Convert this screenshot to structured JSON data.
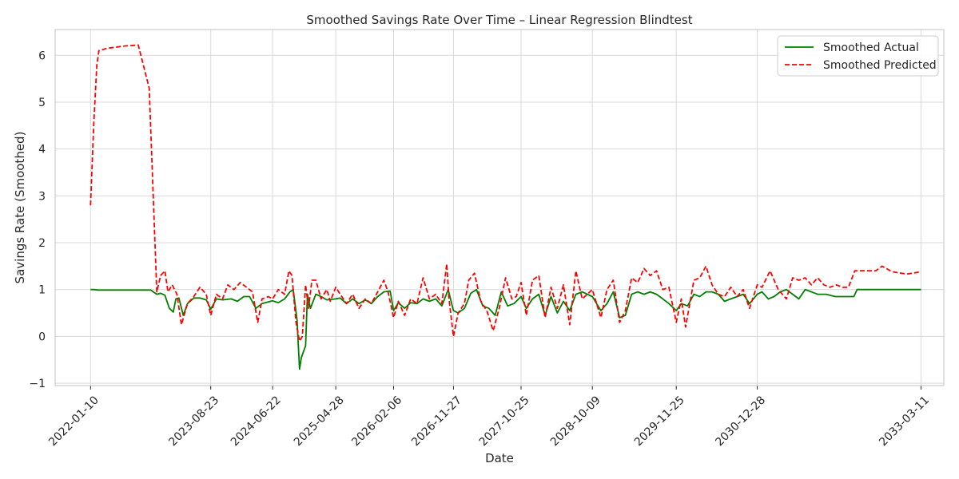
{
  "chart_data": {
    "type": "line",
    "title": "Smoothed Savings Rate Over Time – Linear Regression Blindtest",
    "xlabel": "Date",
    "ylabel": "Savings Rate (Smoothed)",
    "x_ticks": [
      "2022-01-10",
      "2023-08-23",
      "2024-06-22",
      "2025-04-28",
      "2026-02-06",
      "2026-11-27",
      "2027-10-25",
      "2028-10-09",
      "2029-11-25",
      "2030-12-28",
      "2033-03-11"
    ],
    "y_ticks": [
      -1,
      0,
      1,
      2,
      3,
      4,
      5,
      6
    ],
    "ylim": [
      -1.05,
      6.55
    ],
    "xlim": [
      "2021-07-20",
      "2033-07-01"
    ],
    "grid": true,
    "legend_position": "top-right",
    "legend": [
      {
        "label": "Smoothed Actual",
        "color": "#008000",
        "style": "solid"
      },
      {
        "label": "Smoothed Predicted",
        "color": "#ff0000",
        "style": "dashed"
      }
    ],
    "series": [
      {
        "name": "Smoothed Actual",
        "color": "#008000",
        "style": "solid",
        "points": [
          [
            "2022-01-10",
            1.0
          ],
          [
            "2022-01-25",
            1.0
          ],
          [
            "2022-02-15",
            0.99
          ],
          [
            "2022-06-01",
            0.99
          ],
          [
            "2022-10-01",
            0.99
          ],
          [
            "2022-11-01",
            0.99
          ],
          [
            "2022-12-01",
            0.9
          ],
          [
            "2022-12-20",
            0.92
          ],
          [
            "2023-01-10",
            0.88
          ],
          [
            "2023-02-01",
            0.6
          ],
          [
            "2023-02-20",
            0.52
          ],
          [
            "2023-03-05",
            0.8
          ],
          [
            "2023-03-20",
            0.82
          ],
          [
            "2023-04-10",
            0.45
          ],
          [
            "2023-05-01",
            0.7
          ],
          [
            "2023-06-01",
            0.82
          ],
          [
            "2023-07-01",
            0.82
          ],
          [
            "2023-08-01",
            0.78
          ],
          [
            "2023-08-23",
            0.58
          ],
          [
            "2023-09-20",
            0.8
          ],
          [
            "2023-10-20",
            0.78
          ],
          [
            "2023-12-01",
            0.8
          ],
          [
            "2024-01-01",
            0.75
          ],
          [
            "2024-02-01",
            0.85
          ],
          [
            "2024-03-01",
            0.85
          ],
          [
            "2024-04-01",
            0.6
          ],
          [
            "2024-05-01",
            0.7
          ],
          [
            "2024-06-22",
            0.76
          ],
          [
            "2024-07-20",
            0.72
          ],
          [
            "2024-08-20",
            0.8
          ],
          [
            "2024-09-15",
            0.95
          ],
          [
            "2024-10-01",
            1.0
          ],
          [
            "2024-10-20",
            0.35
          ],
          [
            "2024-11-01",
            -0.7
          ],
          [
            "2024-11-10",
            -0.45
          ],
          [
            "2024-12-01",
            -0.2
          ],
          [
            "2024-12-10",
            0.9
          ],
          [
            "2024-12-25",
            0.6
          ],
          [
            "2025-01-20",
            0.9
          ],
          [
            "2025-02-15",
            0.85
          ],
          [
            "2025-03-15",
            0.78
          ],
          [
            "2025-04-28",
            0.8
          ],
          [
            "2025-05-20",
            0.82
          ],
          [
            "2025-06-20",
            0.7
          ],
          [
            "2025-07-20",
            0.8
          ],
          [
            "2025-08-20",
            0.7
          ],
          [
            "2025-09-20",
            0.78
          ],
          [
            "2025-10-20",
            0.7
          ],
          [
            "2025-11-20",
            0.85
          ],
          [
            "2025-12-20",
            0.95
          ],
          [
            "2026-01-20",
            0.97
          ],
          [
            "2026-02-06",
            0.55
          ],
          [
            "2026-03-01",
            0.72
          ],
          [
            "2026-04-01",
            0.6
          ],
          [
            "2026-05-01",
            0.72
          ],
          [
            "2026-06-01",
            0.7
          ],
          [
            "2026-07-01",
            0.8
          ],
          [
            "2026-08-01",
            0.75
          ],
          [
            "2026-09-01",
            0.8
          ],
          [
            "2026-10-01",
            0.65
          ],
          [
            "2026-11-01",
            1.0
          ],
          [
            "2026-11-27",
            0.55
          ],
          [
            "2026-12-20",
            0.5
          ],
          [
            "2027-01-20",
            0.6
          ],
          [
            "2027-02-20",
            0.92
          ],
          [
            "2027-03-20",
            1.0
          ],
          [
            "2027-04-20",
            0.65
          ],
          [
            "2027-05-20",
            0.6
          ],
          [
            "2027-06-20",
            0.45
          ],
          [
            "2027-07-20",
            0.95
          ],
          [
            "2027-08-20",
            0.65
          ],
          [
            "2027-09-20",
            0.7
          ],
          [
            "2027-10-25",
            0.85
          ],
          [
            "2027-11-20",
            0.6
          ],
          [
            "2027-12-20",
            0.8
          ],
          [
            "2028-01-20",
            0.9
          ],
          [
            "2028-02-20",
            0.45
          ],
          [
            "2028-03-20",
            0.85
          ],
          [
            "2028-04-20",
            0.5
          ],
          [
            "2028-05-20",
            0.75
          ],
          [
            "2028-06-20",
            0.55
          ],
          [
            "2028-07-20",
            0.9
          ],
          [
            "2028-08-20",
            0.95
          ],
          [
            "2028-10-09",
            0.85
          ],
          [
            "2028-11-20",
            0.55
          ],
          [
            "2028-12-20",
            0.7
          ],
          [
            "2029-01-20",
            0.95
          ],
          [
            "2029-02-20",
            0.4
          ],
          [
            "2029-03-20",
            0.45
          ],
          [
            "2029-04-20",
            0.9
          ],
          [
            "2029-05-20",
            0.95
          ],
          [
            "2029-06-20",
            0.9
          ],
          [
            "2029-07-20",
            0.95
          ],
          [
            "2029-08-20",
            0.9
          ],
          [
            "2029-09-20",
            0.8
          ],
          [
            "2029-10-20",
            0.7
          ],
          [
            "2029-11-25",
            0.55
          ],
          [
            "2029-12-20",
            0.7
          ],
          [
            "2030-01-20",
            0.65
          ],
          [
            "2030-02-20",
            0.9
          ],
          [
            "2030-03-20",
            0.85
          ],
          [
            "2030-04-20",
            0.95
          ],
          [
            "2030-05-20",
            0.95
          ],
          [
            "2030-06-20",
            0.9
          ],
          [
            "2030-07-20",
            0.75
          ],
          [
            "2030-08-20",
            0.8
          ],
          [
            "2030-09-20",
            0.85
          ],
          [
            "2030-10-20",
            0.9
          ],
          [
            "2030-11-20",
            0.7
          ],
          [
            "2030-12-28",
            0.9
          ],
          [
            "2031-01-20",
            0.95
          ],
          [
            "2031-02-20",
            0.8
          ],
          [
            "2031-03-20",
            0.85
          ],
          [
            "2031-04-20",
            0.95
          ],
          [
            "2031-05-20",
            1.0
          ],
          [
            "2031-06-20",
            0.9
          ],
          [
            "2031-07-20",
            0.8
          ],
          [
            "2031-08-20",
            1.0
          ],
          [
            "2031-09-20",
            0.95
          ],
          [
            "2031-10-20",
            0.9
          ],
          [
            "2031-12-01",
            0.9
          ],
          [
            "2032-01-15",
            0.85
          ],
          [
            "2032-03-01",
            0.85
          ],
          [
            "2032-04-15",
            0.85
          ],
          [
            "2032-05-01",
            1.0
          ],
          [
            "2032-08-01",
            1.0
          ],
          [
            "2033-03-11",
            1.0
          ]
        ]
      },
      {
        "name": "Smoothed Predicted",
        "color": "#ff0000",
        "style": "dashed",
        "points": [
          [
            "2022-01-10",
            2.8
          ],
          [
            "2022-01-25",
            4.5
          ],
          [
            "2022-02-10",
            5.8
          ],
          [
            "2022-02-20",
            6.1
          ],
          [
            "2022-04-01",
            6.15
          ],
          [
            "2022-07-01",
            6.2
          ],
          [
            "2022-09-01",
            6.22
          ],
          [
            "2022-10-25",
            5.3
          ],
          [
            "2022-12-01",
            0.95
          ],
          [
            "2022-12-20",
            1.3
          ],
          [
            "2023-01-10",
            1.4
          ],
          [
            "2023-01-25",
            0.95
          ],
          [
            "2023-02-15",
            1.1
          ],
          [
            "2023-03-10",
            0.9
          ],
          [
            "2023-04-01",
            0.25
          ],
          [
            "2023-05-01",
            0.7
          ],
          [
            "2023-06-01",
            0.85
          ],
          [
            "2023-07-01",
            1.05
          ],
          [
            "2023-08-01",
            0.9
          ],
          [
            "2023-08-23",
            0.45
          ],
          [
            "2023-09-20",
            0.9
          ],
          [
            "2023-10-20",
            0.8
          ],
          [
            "2023-11-15",
            1.1
          ],
          [
            "2023-12-15",
            1.0
          ],
          [
            "2024-01-15",
            1.15
          ],
          [
            "2024-02-15",
            1.05
          ],
          [
            "2024-03-15",
            0.95
          ],
          [
            "2024-04-10",
            0.3
          ],
          [
            "2024-05-01",
            0.8
          ],
          [
            "2024-06-01",
            0.85
          ],
          [
            "2024-06-22",
            0.8
          ],
          [
            "2024-07-20",
            1.0
          ],
          [
            "2024-08-20",
            0.9
          ],
          [
            "2024-09-10",
            1.4
          ],
          [
            "2024-09-25",
            1.3
          ],
          [
            "2024-10-15",
            0.3
          ],
          [
            "2024-11-01",
            -0.1
          ],
          [
            "2024-11-15",
            0.0
          ],
          [
            "2024-12-01",
            1.1
          ],
          [
            "2024-12-15",
            0.6
          ],
          [
            "2025-01-01",
            1.2
          ],
          [
            "2025-01-20",
            1.2
          ],
          [
            "2025-02-15",
            0.8
          ],
          [
            "2025-03-15",
            1.0
          ],
          [
            "2025-04-01",
            0.75
          ],
          [
            "2025-04-28",
            1.05
          ],
          [
            "2025-05-20",
            0.9
          ],
          [
            "2025-06-20",
            0.7
          ],
          [
            "2025-07-20",
            0.9
          ],
          [
            "2025-08-20",
            0.6
          ],
          [
            "2025-09-20",
            0.8
          ],
          [
            "2025-10-20",
            0.7
          ],
          [
            "2025-11-20",
            0.95
          ],
          [
            "2025-12-20",
            1.2
          ],
          [
            "2026-01-10",
            0.95
          ],
          [
            "2026-02-06",
            0.4
          ],
          [
            "2026-03-01",
            0.75
          ],
          [
            "2026-04-01",
            0.45
          ],
          [
            "2026-05-01",
            0.8
          ],
          [
            "2026-06-01",
            0.7
          ],
          [
            "2026-07-01",
            1.25
          ],
          [
            "2026-08-01",
            0.8
          ],
          [
            "2026-09-01",
            0.9
          ],
          [
            "2026-10-01",
            0.7
          ],
          [
            "2026-10-25",
            1.55
          ],
          [
            "2026-11-05",
            0.8
          ],
          [
            "2026-11-27",
            0.0
          ],
          [
            "2026-12-20",
            0.5
          ],
          [
            "2027-01-20",
            0.7
          ],
          [
            "2027-02-10",
            1.2
          ],
          [
            "2027-03-10",
            1.35
          ],
          [
            "2027-04-10",
            0.75
          ],
          [
            "2027-05-10",
            0.55
          ],
          [
            "2027-06-10",
            0.12
          ],
          [
            "2027-07-10",
            0.6
          ],
          [
            "2027-08-10",
            1.25
          ],
          [
            "2027-09-10",
            0.8
          ],
          [
            "2027-10-01",
            0.85
          ],
          [
            "2027-10-25",
            1.15
          ],
          [
            "2027-11-20",
            0.45
          ],
          [
            "2027-12-20",
            1.2
          ],
          [
            "2028-01-20",
            1.3
          ],
          [
            "2028-02-20",
            0.4
          ],
          [
            "2028-03-20",
            1.05
          ],
          [
            "2028-04-20",
            0.6
          ],
          [
            "2028-05-20",
            1.1
          ],
          [
            "2028-06-20",
            0.25
          ],
          [
            "2028-07-20",
            1.4
          ],
          [
            "2028-08-20",
            0.8
          ],
          [
            "2028-10-09",
            1.0
          ],
          [
            "2028-11-20",
            0.4
          ],
          [
            "2028-12-20",
            1.0
          ],
          [
            "2029-01-20",
            1.2
          ],
          [
            "2029-02-20",
            0.3
          ],
          [
            "2029-03-20",
            0.55
          ],
          [
            "2029-04-20",
            1.25
          ],
          [
            "2029-05-20",
            1.15
          ],
          [
            "2029-06-20",
            1.45
          ],
          [
            "2029-07-20",
            1.3
          ],
          [
            "2029-08-20",
            1.4
          ],
          [
            "2029-09-20",
            1.0
          ],
          [
            "2029-10-20",
            1.05
          ],
          [
            "2029-11-25",
            0.3
          ],
          [
            "2029-12-20",
            0.8
          ],
          [
            "2030-01-10",
            0.2
          ],
          [
            "2030-02-20",
            1.2
          ],
          [
            "2030-03-20",
            1.25
          ],
          [
            "2030-04-20",
            1.5
          ],
          [
            "2030-05-20",
            1.1
          ],
          [
            "2030-06-20",
            0.9
          ],
          [
            "2030-07-20",
            0.85
          ],
          [
            "2030-08-20",
            1.05
          ],
          [
            "2030-09-20",
            0.85
          ],
          [
            "2030-10-20",
            1.0
          ],
          [
            "2030-11-20",
            0.6
          ],
          [
            "2030-12-28",
            1.1
          ],
          [
            "2031-01-20",
            1.05
          ],
          [
            "2031-03-01",
            1.4
          ],
          [
            "2031-04-10",
            1.0
          ],
          [
            "2031-05-20",
            0.8
          ],
          [
            "2031-06-20",
            1.25
          ],
          [
            "2031-07-20",
            1.2
          ],
          [
            "2031-08-20",
            1.25
          ],
          [
            "2031-09-20",
            1.1
          ],
          [
            "2031-10-20",
            1.25
          ],
          [
            "2031-11-20",
            1.1
          ],
          [
            "2031-12-20",
            1.05
          ],
          [
            "2032-01-20",
            1.1
          ],
          [
            "2032-02-20",
            1.05
          ],
          [
            "2032-03-20",
            1.05
          ],
          [
            "2032-04-20",
            1.4
          ],
          [
            "2032-06-20",
            1.4
          ],
          [
            "2032-08-01",
            1.4
          ],
          [
            "2032-09-01",
            1.5
          ],
          [
            "2032-10-20",
            1.38
          ],
          [
            "2033-01-01",
            1.33
          ],
          [
            "2033-03-11",
            1.38
          ]
        ]
      }
    ]
  }
}
